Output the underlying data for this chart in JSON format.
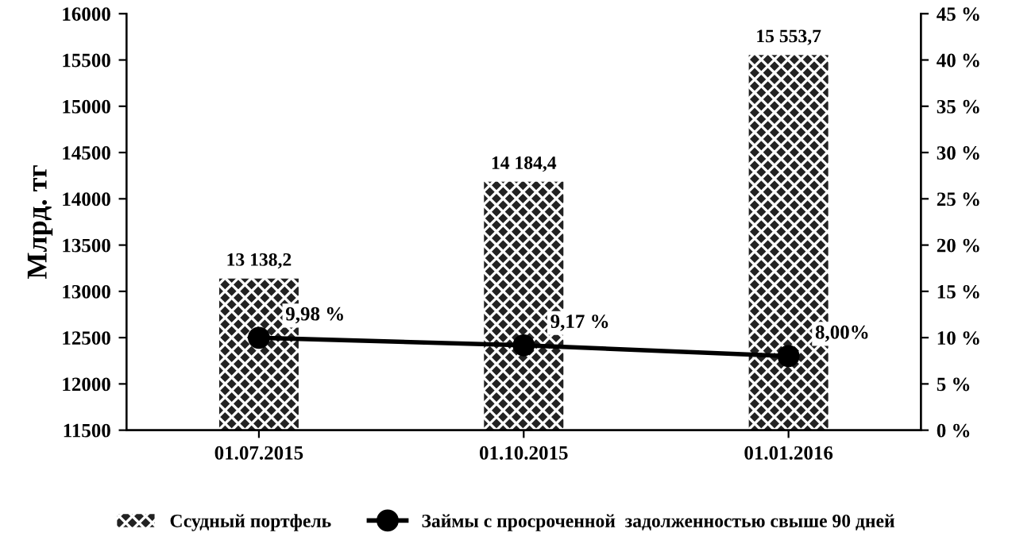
{
  "chart_data": {
    "type": "bar",
    "ylabel": "Млрд. тг",
    "categories": [
      "01.07.2015",
      "01.10.2015",
      "01.01.2016"
    ],
    "series": [
      {
        "name": "Ссудный портфель",
        "color": "#222222",
        "values": [
          13138.2,
          14184.4,
          15553.7
        ],
        "value_labels": [
          "13 138,2",
          "14 184,4",
          "15 553,7"
        ]
      },
      {
        "name": "Займы с просроченной  задолженностью свыше 90 дней",
        "type": "line",
        "axis": "y2",
        "color": "#000000",
        "values": [
          9.98,
          9.17,
          8.0
        ],
        "value_labels": [
          "9,98 %",
          "9,17 %",
          "8,00%"
        ],
        "marker": "circle",
        "line_style": "solid"
      }
    ],
    "ylim": [
      11500,
      16000
    ],
    "yticks": [
      11500,
      12000,
      12500,
      13000,
      13500,
      14000,
      14500,
      15000,
      15500,
      16000
    ],
    "y2lim": [
      0,
      45
    ],
    "y2ticks": [
      {
        "value": 0,
        "label": "0 %"
      },
      {
        "value": 5,
        "label": "5 %"
      },
      {
        "value": 10,
        "label": "10 %"
      },
      {
        "value": 15,
        "label": "15 %"
      },
      {
        "value": 20,
        "label": "20 %"
      },
      {
        "value": 25,
        "label": "25 %"
      },
      {
        "value": 30,
        "label": "30 %"
      },
      {
        "value": 35,
        "label": "35 %"
      },
      {
        "value": 40,
        "label": "40 %"
      },
      {
        "value": 45,
        "label": "45 %"
      }
    ],
    "grid": false,
    "legend": "bottom"
  }
}
